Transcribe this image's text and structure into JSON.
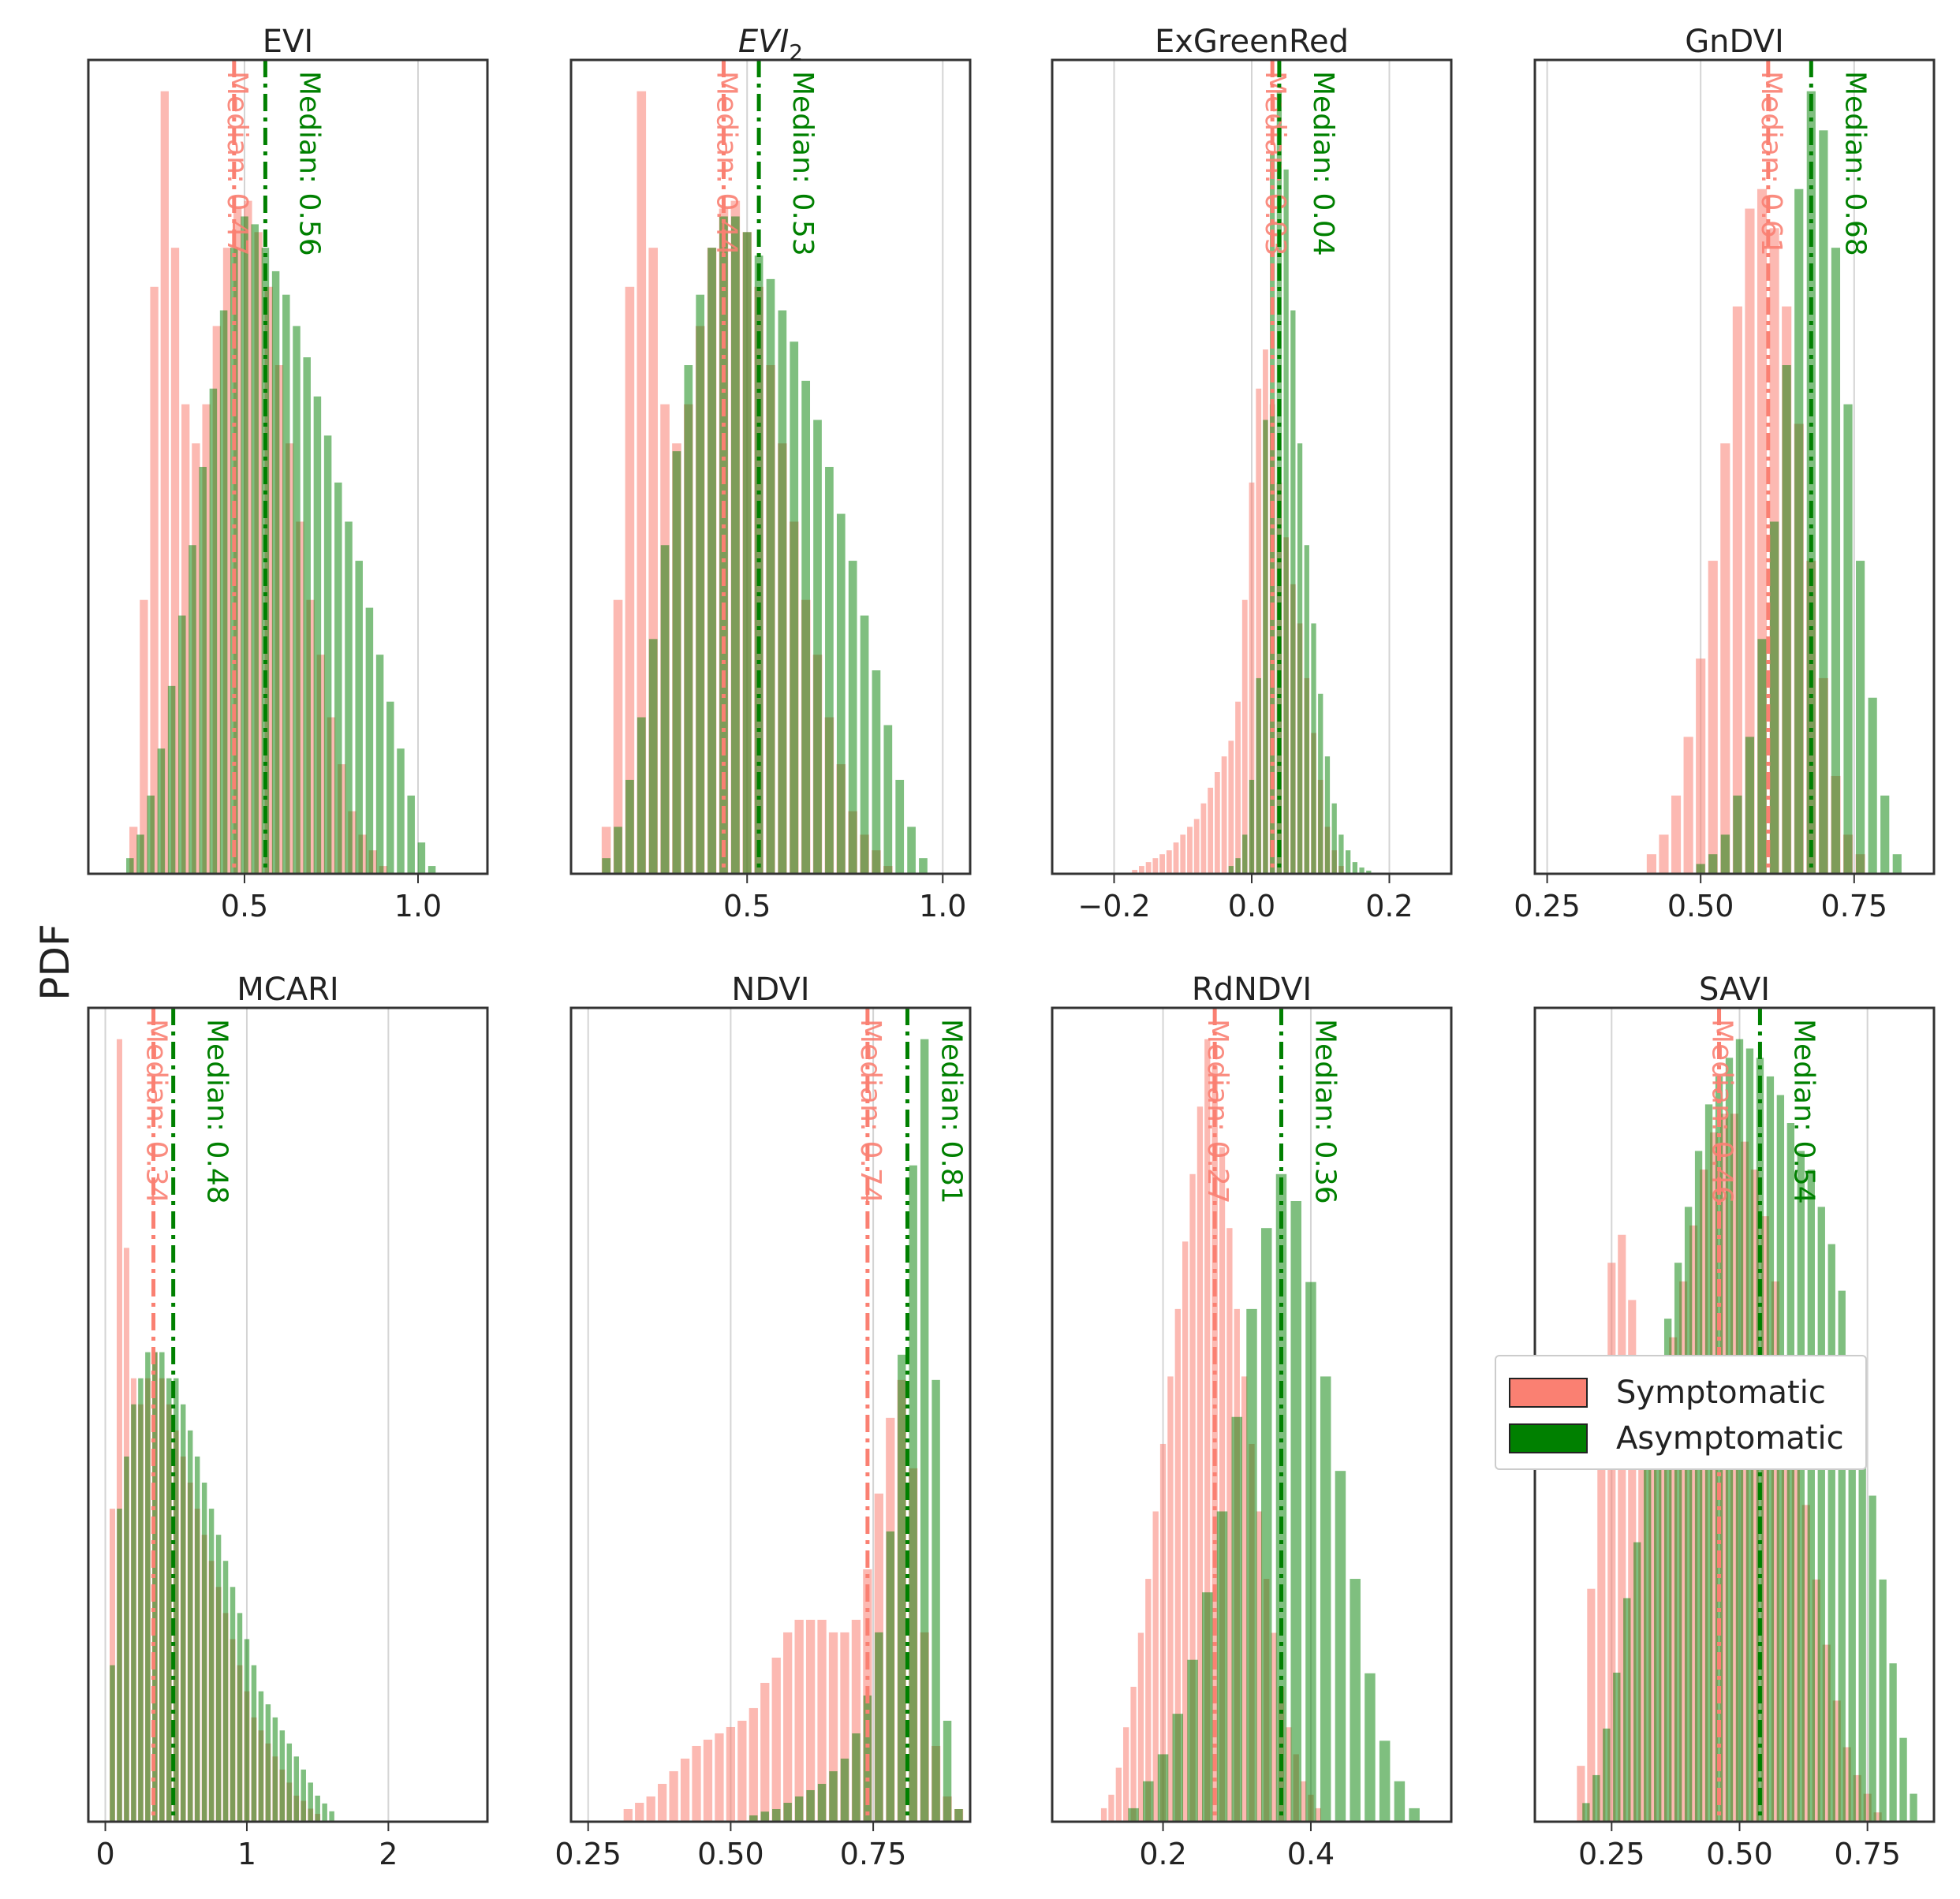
{
  "figure": {
    "ylabel": "PDF",
    "colors": {
      "symptomatic": "#fa8072",
      "asymptomatic": "#008000",
      "overlap": "#7c6f2c",
      "grid": "#d4d4d4",
      "axis": "#333333"
    },
    "legend": [
      {
        "label": "Symptomatic",
        "color": "#fa8072"
      },
      {
        "label": "Asymptomatic",
        "color": "#008000"
      }
    ]
  },
  "chart_data": [
    {
      "type": "bar",
      "title": "EVI",
      "title_sub": "",
      "xlim": [
        0.05,
        1.2
      ],
      "xticks": [
        0.5,
        1.0
      ],
      "xtick_labels": [
        "0.5",
        "1.0"
      ],
      "symptomatic": {
        "median": 0.47,
        "median_label": "Median: 0.47",
        "x": [
          0.18,
          0.21,
          0.24,
          0.27,
          0.3,
          0.33,
          0.36,
          0.39,
          0.42,
          0.45,
          0.48,
          0.51,
          0.54,
          0.57,
          0.6,
          0.63,
          0.66,
          0.69,
          0.72,
          0.75,
          0.78,
          0.81,
          0.84,
          0.87,
          0.9
        ],
        "y": [
          0.06,
          0.35,
          0.75,
          1.0,
          0.8,
          0.6,
          0.55,
          0.6,
          0.7,
          0.8,
          0.85,
          0.86,
          0.82,
          0.75,
          0.65,
          0.55,
          0.45,
          0.35,
          0.28,
          0.2,
          0.14,
          0.08,
          0.05,
          0.03,
          0.01
        ]
      },
      "asymptomatic": {
        "median": 0.56,
        "median_label": "Median: 0.56",
        "x": [
          0.17,
          0.2,
          0.23,
          0.26,
          0.29,
          0.32,
          0.35,
          0.38,
          0.41,
          0.44,
          0.47,
          0.5,
          0.53,
          0.56,
          0.59,
          0.62,
          0.65,
          0.68,
          0.71,
          0.74,
          0.77,
          0.8,
          0.83,
          0.86,
          0.89,
          0.92,
          0.95,
          0.98,
          1.01,
          1.04
        ],
        "y": [
          0.02,
          0.05,
          0.1,
          0.16,
          0.24,
          0.33,
          0.42,
          0.52,
          0.62,
          0.72,
          0.8,
          0.84,
          0.83,
          0.8,
          0.77,
          0.74,
          0.7,
          0.66,
          0.61,
          0.56,
          0.5,
          0.45,
          0.4,
          0.34,
          0.28,
          0.22,
          0.16,
          0.1,
          0.04,
          0.01
        ]
      }
    },
    {
      "type": "bar",
      "title": "EVI",
      "title_sub": "2",
      "xlim": [
        0.05,
        1.07
      ],
      "xticks": [
        0.5,
        1.0
      ],
      "xtick_labels": [
        "0.5",
        "1.0"
      ],
      "symptomatic": {
        "median": 0.44,
        "median_label": "Median: 0.44",
        "x": [
          0.14,
          0.17,
          0.2,
          0.23,
          0.26,
          0.29,
          0.32,
          0.35,
          0.38,
          0.41,
          0.44,
          0.47,
          0.5,
          0.53,
          0.56,
          0.59,
          0.62,
          0.65,
          0.68,
          0.71,
          0.74,
          0.77,
          0.8,
          0.83,
          0.86
        ],
        "y": [
          0.06,
          0.35,
          0.75,
          1.0,
          0.8,
          0.6,
          0.55,
          0.6,
          0.7,
          0.8,
          0.85,
          0.86,
          0.82,
          0.75,
          0.65,
          0.55,
          0.45,
          0.35,
          0.28,
          0.2,
          0.14,
          0.08,
          0.05,
          0.03,
          0.01
        ]
      },
      "asymptomatic": {
        "median": 0.53,
        "median_label": "Median: 0.53",
        "x": [
          0.14,
          0.17,
          0.2,
          0.23,
          0.26,
          0.29,
          0.32,
          0.35,
          0.38,
          0.41,
          0.44,
          0.47,
          0.5,
          0.53,
          0.56,
          0.59,
          0.62,
          0.65,
          0.68,
          0.71,
          0.74,
          0.77,
          0.8,
          0.83,
          0.86,
          0.89,
          0.92,
          0.95
        ],
        "y": [
          0.02,
          0.06,
          0.12,
          0.2,
          0.3,
          0.42,
          0.54,
          0.65,
          0.74,
          0.8,
          0.84,
          0.84,
          0.82,
          0.79,
          0.76,
          0.72,
          0.68,
          0.63,
          0.58,
          0.52,
          0.46,
          0.4,
          0.33,
          0.26,
          0.19,
          0.12,
          0.06,
          0.02
        ]
      }
    },
    {
      "type": "bar",
      "title": "ExGreenRed",
      "title_sub": "",
      "xlim": [
        -0.29,
        0.29
      ],
      "xticks": [
        -0.2,
        0.0,
        0.2
      ],
      "xtick_labels": [
        "−0.2",
        "0.0",
        "0.2"
      ],
      "symptomatic": {
        "median": 0.03,
        "median_label": "Median: 0.03",
        "x": [
          -0.17,
          -0.16,
          -0.15,
          -0.14,
          -0.13,
          -0.12,
          -0.11,
          -0.1,
          -0.09,
          -0.08,
          -0.07,
          -0.06,
          -0.05,
          -0.04,
          -0.03,
          -0.02,
          -0.01,
          0.0,
          0.01,
          0.02,
          0.03,
          0.04,
          0.05,
          0.06,
          0.07,
          0.08,
          0.09,
          0.1,
          0.11,
          0.12,
          0.13
        ],
        "y": [
          0.005,
          0.01,
          0.015,
          0.02,
          0.025,
          0.03,
          0.04,
          0.05,
          0.06,
          0.07,
          0.09,
          0.11,
          0.13,
          0.15,
          0.17,
          0.22,
          0.35,
          0.5,
          0.62,
          0.67,
          0.6,
          0.5,
          0.43,
          0.37,
          0.32,
          0.25,
          0.18,
          0.12,
          0.06,
          0.03,
          0.01
        ]
      },
      "asymptomatic": {
        "median": 0.04,
        "median_label": "Median: 0.04",
        "x": [
          -0.03,
          -0.02,
          -0.01,
          0.0,
          0.01,
          0.02,
          0.03,
          0.04,
          0.05,
          0.06,
          0.07,
          0.08,
          0.09,
          0.1,
          0.11,
          0.12,
          0.13,
          0.14,
          0.15,
          0.16,
          0.17
        ],
        "y": [
          0.01,
          0.02,
          0.05,
          0.12,
          0.25,
          0.58,
          0.92,
          1.0,
          0.9,
          0.72,
          0.55,
          0.42,
          0.32,
          0.23,
          0.15,
          0.09,
          0.05,
          0.03,
          0.015,
          0.008,
          0.004
        ]
      }
    },
    {
      "type": "bar",
      "title": "GnDVI",
      "title_sub": "",
      "xlim": [
        0.23,
        0.88
      ],
      "xticks": [
        0.25,
        0.5,
        0.75
      ],
      "xtick_labels": [
        "0.25",
        "0.50",
        "0.75"
      ],
      "symptomatic": {
        "median": 0.61,
        "median_label": "Median: 0.61",
        "x": [
          0.42,
          0.44,
          0.46,
          0.48,
          0.5,
          0.52,
          0.54,
          0.56,
          0.58,
          0.6,
          0.62,
          0.64,
          0.66,
          0.68,
          0.7,
          0.72,
          0.74,
          0.76
        ],
        "y": [
          0.01,
          0.02,
          0.04,
          0.07,
          0.11,
          0.16,
          0.22,
          0.29,
          0.34,
          0.35,
          0.33,
          0.29,
          0.23,
          0.16,
          0.1,
          0.05,
          0.02,
          0.01
        ]
      },
      "asymptomatic": {
        "median": 0.68,
        "median_label": "Median: 0.68",
        "x": [
          0.5,
          0.52,
          0.54,
          0.56,
          0.58,
          0.6,
          0.62,
          0.64,
          0.66,
          0.68,
          0.7,
          0.72,
          0.74,
          0.76,
          0.78,
          0.8,
          0.82
        ],
        "y": [
          0.005,
          0.01,
          0.02,
          0.04,
          0.07,
          0.12,
          0.18,
          0.26,
          0.35,
          0.4,
          0.38,
          0.32,
          0.24,
          0.16,
          0.09,
          0.04,
          0.01
        ]
      }
    },
    {
      "type": "bar",
      "title": "MCARI",
      "title_sub": "",
      "xlim": [
        -0.12,
        2.7
      ],
      "xticks": [
        0,
        1,
        2
      ],
      "xtick_labels": [
        "0",
        "1",
        "2"
      ],
      "symptomatic": {
        "median": 0.34,
        "median_label": "Median: 0.34",
        "x": [
          0.05,
          0.1,
          0.15,
          0.2,
          0.25,
          0.3,
          0.35,
          0.4,
          0.45,
          0.5,
          0.55,
          0.6,
          0.65,
          0.7,
          0.75,
          0.8,
          0.85,
          0.9,
          0.95,
          1.0,
          1.05,
          1.1,
          1.15,
          1.2,
          1.25,
          1.3,
          1.35,
          1.4,
          1.45,
          1.5
        ],
        "y": [
          0.12,
          0.3,
          0.22,
          0.17,
          0.16,
          0.17,
          0.18,
          0.17,
          0.16,
          0.15,
          0.14,
          0.13,
          0.12,
          0.11,
          0.1,
          0.09,
          0.08,
          0.07,
          0.06,
          0.05,
          0.04,
          0.035,
          0.03,
          0.025,
          0.02,
          0.015,
          0.01,
          0.008,
          0.005,
          0.003
        ]
      },
      "asymptomatic": {
        "median": 0.48,
        "median_label": "Median: 0.48",
        "x": [
          0.05,
          0.1,
          0.15,
          0.2,
          0.25,
          0.3,
          0.35,
          0.4,
          0.45,
          0.5,
          0.55,
          0.6,
          0.65,
          0.7,
          0.75,
          0.8,
          0.85,
          0.9,
          0.95,
          1.0,
          1.05,
          1.1,
          1.15,
          1.2,
          1.25,
          1.3,
          1.35,
          1.4,
          1.45,
          1.5,
          1.55,
          1.6
        ],
        "y": [
          0.06,
          0.12,
          0.14,
          0.16,
          0.17,
          0.18,
          0.18,
          0.18,
          0.17,
          0.17,
          0.16,
          0.15,
          0.14,
          0.13,
          0.12,
          0.11,
          0.1,
          0.09,
          0.08,
          0.07,
          0.06,
          0.05,
          0.045,
          0.04,
          0.035,
          0.03,
          0.025,
          0.02,
          0.015,
          0.01,
          0.007,
          0.004
        ]
      }
    },
    {
      "type": "bar",
      "title": "NDVI",
      "title_sub": "",
      "xlim": [
        0.22,
        0.92
      ],
      "xticks": [
        0.25,
        0.5,
        0.75
      ],
      "xtick_labels": [
        "0.25",
        "0.50",
        "0.75"
      ],
      "symptomatic": {
        "median": 0.74,
        "median_label": "Median: 0.74",
        "x": [
          0.32,
          0.34,
          0.36,
          0.38,
          0.4,
          0.42,
          0.44,
          0.46,
          0.48,
          0.5,
          0.52,
          0.54,
          0.56,
          0.58,
          0.6,
          0.62,
          0.64,
          0.66,
          0.68,
          0.7,
          0.72,
          0.74,
          0.76,
          0.78,
          0.8,
          0.82,
          0.84,
          0.86,
          0.88,
          0.9
        ],
        "y": [
          0.01,
          0.015,
          0.02,
          0.03,
          0.04,
          0.05,
          0.06,
          0.065,
          0.07,
          0.075,
          0.08,
          0.09,
          0.11,
          0.13,
          0.15,
          0.16,
          0.16,
          0.16,
          0.15,
          0.15,
          0.16,
          0.2,
          0.26,
          0.32,
          0.35,
          0.28,
          0.15,
          0.06,
          0.02,
          0.01
        ]
      },
      "asymptomatic": {
        "median": 0.81,
        "median_label": "Median: 0.81",
        "x": [
          0.54,
          0.56,
          0.58,
          0.6,
          0.62,
          0.64,
          0.66,
          0.68,
          0.7,
          0.72,
          0.74,
          0.76,
          0.78,
          0.8,
          0.82,
          0.84,
          0.86,
          0.88,
          0.9
        ],
        "y": [
          0.005,
          0.008,
          0.01,
          0.015,
          0.02,
          0.025,
          0.03,
          0.04,
          0.05,
          0.07,
          0.1,
          0.15,
          0.23,
          0.37,
          0.52,
          0.62,
          0.35,
          0.08,
          0.01
        ]
      }
    },
    {
      "type": "bar",
      "title": "RdNDVI",
      "title_sub": "",
      "xlim": [
        0.05,
        0.59
      ],
      "xticks": [
        0.2,
        0.4
      ],
      "xtick_labels": [
        "0.2",
        "0.4"
      ],
      "symptomatic": {
        "median": 0.27,
        "median_label": "Median: 0.27",
        "x": [
          0.12,
          0.13,
          0.14,
          0.15,
          0.16,
          0.17,
          0.18,
          0.19,
          0.2,
          0.21,
          0.22,
          0.23,
          0.24,
          0.25,
          0.26,
          0.27,
          0.28,
          0.29,
          0.3,
          0.31,
          0.32,
          0.33,
          0.34,
          0.35,
          0.36,
          0.37,
          0.38,
          0.39,
          0.4,
          0.41
        ],
        "y": [
          0.01,
          0.02,
          0.04,
          0.07,
          0.1,
          0.14,
          0.18,
          0.23,
          0.28,
          0.33,
          0.38,
          0.43,
          0.48,
          0.53,
          0.58,
          0.56,
          0.5,
          0.44,
          0.38,
          0.33,
          0.28,
          0.23,
          0.18,
          0.14,
          0.1,
          0.07,
          0.05,
          0.03,
          0.02,
          0.01
        ]
      },
      "asymptomatic": {
        "median": 0.36,
        "median_label": "Median: 0.36",
        "x": [
          0.16,
          0.18,
          0.2,
          0.22,
          0.24,
          0.26,
          0.28,
          0.3,
          0.32,
          0.34,
          0.36,
          0.38,
          0.4,
          0.42,
          0.44,
          0.46,
          0.48,
          0.5,
          0.52,
          0.54
        ],
        "y": [
          0.01,
          0.03,
          0.05,
          0.08,
          0.12,
          0.17,
          0.23,
          0.3,
          0.38,
          0.44,
          0.48,
          0.46,
          0.4,
          0.33,
          0.26,
          0.18,
          0.11,
          0.06,
          0.03,
          0.01
        ]
      }
    },
    {
      "type": "bar",
      "title": "SAVI",
      "title_sub": "",
      "xlim": [
        0.1,
        0.88
      ],
      "xticks": [
        0.25,
        0.5,
        0.75
      ],
      "xtick_labels": [
        "0.25",
        "0.50",
        "0.75"
      ],
      "symptomatic": {
        "median": 0.46,
        "median_label": "Median: 0.46",
        "x": [
          0.19,
          0.21,
          0.23,
          0.25,
          0.27,
          0.29,
          0.31,
          0.33,
          0.35,
          0.37,
          0.39,
          0.41,
          0.43,
          0.45,
          0.47,
          0.49,
          0.51,
          0.53,
          0.55,
          0.57,
          0.59,
          0.61,
          0.63,
          0.65,
          0.67,
          0.69,
          0.71,
          0.73,
          0.75,
          0.77
        ],
        "y": [
          0.06,
          0.25,
          0.5,
          0.6,
          0.63,
          0.56,
          0.5,
          0.45,
          0.47,
          0.52,
          0.58,
          0.64,
          0.7,
          0.74,
          0.76,
          0.76,
          0.73,
          0.7,
          0.65,
          0.58,
          0.5,
          0.42,
          0.34,
          0.26,
          0.19,
          0.13,
          0.08,
          0.05,
          0.03,
          0.01
        ]
      },
      "asymptomatic": {
        "median": 0.54,
        "median_label": "Median: 0.54",
        "x": [
          0.2,
          0.22,
          0.24,
          0.26,
          0.28,
          0.3,
          0.32,
          0.34,
          0.36,
          0.38,
          0.4,
          0.42,
          0.44,
          0.46,
          0.48,
          0.5,
          0.52,
          0.54,
          0.56,
          0.58,
          0.6,
          0.62,
          0.64,
          0.66,
          0.68,
          0.7,
          0.72,
          0.74,
          0.76,
          0.78,
          0.8,
          0.82,
          0.84
        ],
        "y": [
          0.02,
          0.05,
          0.1,
          0.16,
          0.24,
          0.3,
          0.4,
          0.48,
          0.54,
          0.6,
          0.66,
          0.72,
          0.77,
          0.8,
          0.82,
          0.84,
          0.83,
          0.82,
          0.8,
          0.78,
          0.75,
          0.72,
          0.7,
          0.66,
          0.62,
          0.57,
          0.5,
          0.43,
          0.35,
          0.26,
          0.17,
          0.09,
          0.03
        ]
      }
    }
  ]
}
